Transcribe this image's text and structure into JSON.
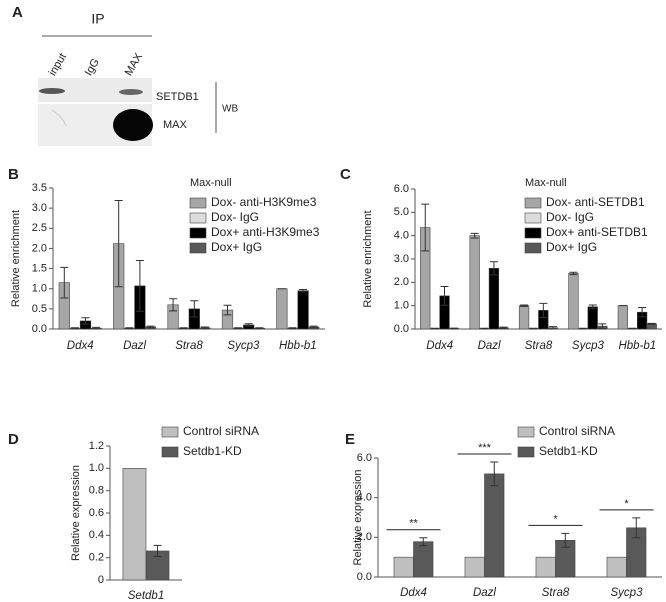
{
  "blot": {
    "label": "A",
    "header": "IP",
    "lanes": [
      "input",
      "IgG",
      "MAX"
    ],
    "rows": [
      "SETDB1",
      "MAX"
    ],
    "method": "WB"
  },
  "chart_data": [
    {
      "type": "bar",
      "panel": "B",
      "legend_title": "Max-null",
      "ylabel": "Relative enrichment",
      "categories": [
        "Ddx4",
        "Dazl",
        "Stra8",
        "Sycp3",
        "Hbb-b1"
      ],
      "ylim": [
        0,
        3.5
      ],
      "yticks": [
        {
          "value": 0,
          "label": "0.0"
        },
        0.5,
        {
          "value": 1,
          "label": "1.0"
        },
        1.5,
        {
          "value": 2,
          "label": "2.0"
        },
        2.5,
        {
          "value": 3,
          "label": "3.0"
        },
        3.5
      ],
      "series": [
        {
          "name": "Dox- anti-H3K9me3",
          "color": "#a6a6a6",
          "values": [
            1.15,
            2.12,
            0.6,
            0.47,
            1.0
          ],
          "errors": [
            0.38,
            1.07,
            0.15,
            0.12,
            0
          ]
        },
        {
          "name": "Dox- IgG",
          "color": "#dcdcdc",
          "values": [
            0.02,
            0.02,
            0.02,
            0.02,
            0.02
          ],
          "errors": [
            0.01,
            0.01,
            0.01,
            0.01,
            0.01
          ]
        },
        {
          "name": "Dox+ anti-H3K9me3",
          "color": "#000000",
          "values": [
            0.2,
            1.07,
            0.5,
            0.1,
            0.95
          ],
          "errors": [
            0.08,
            0.63,
            0.2,
            0.03,
            0.03
          ]
        },
        {
          "name": "Dox+ IgG",
          "color": "#595959",
          "values": [
            0.02,
            0.05,
            0.03,
            0.02,
            0.05
          ],
          "errors": [
            0.02,
            0.02,
            0.02,
            0.01,
            0.02
          ]
        }
      ]
    },
    {
      "type": "bar",
      "panel": "C",
      "legend_title": "Max-null",
      "ylabel": "Relative enrichment",
      "categories": [
        "Ddx4",
        "Dazl",
        "Stra8",
        "Sycp3",
        "Hbb-b1"
      ],
      "ylim": [
        0,
        6
      ],
      "yticks": [
        {
          "value": 0,
          "label": "0.0"
        },
        {
          "value": 1,
          "label": "1.0"
        },
        {
          "value": 2,
          "label": "2.0"
        },
        {
          "value": 3,
          "label": "3.0"
        },
        {
          "value": 4,
          "label": "4.0"
        },
        {
          "value": 5,
          "label": "5.0"
        },
        {
          "value": 6,
          "label": "6.0"
        }
      ],
      "series": [
        {
          "name": "Dox- anti-SETDB1",
          "color": "#a6a6a6",
          "values": [
            4.35,
            4.0,
            1.0,
            2.38,
            1.0
          ],
          "errors": [
            1.0,
            0.1,
            0.03,
            0.05,
            0
          ]
        },
        {
          "name": "Dox- IgG",
          "color": "#dcdcdc",
          "values": [
            0.02,
            0.02,
            0.02,
            0.02,
            0.02
          ],
          "errors": [
            0.01,
            0.01,
            0.01,
            0.01,
            0.01
          ]
        },
        {
          "name": "Dox+ anti-SETDB1",
          "color": "#000000",
          "values": [
            1.42,
            2.6,
            0.8,
            0.95,
            0.72
          ],
          "errors": [
            0.4,
            0.28,
            0.3,
            0.08,
            0.2
          ]
        },
        {
          "name": "Dox+ IgG",
          "color": "#595959",
          "values": [
            0.02,
            0.05,
            0.05,
            0.12,
            0.22
          ],
          "errors": [
            0.02,
            0.03,
            0.05,
            0.1,
            0.02
          ]
        }
      ]
    },
    {
      "type": "bar",
      "panel": "D",
      "ylabel": "Relative expression",
      "categories": [
        "Setdb1"
      ],
      "ylim": [
        0,
        1.2
      ],
      "yticks": [
        0,
        0.2,
        0.4,
        0.6,
        0.8,
        {
          "value": 1,
          "label": "1.0"
        },
        1.2
      ],
      "series": [
        {
          "name": "Control siRNA",
          "color": "#bfbfbf",
          "values": [
            1.0
          ]
        },
        {
          "name": "Setdb1-KD",
          "color": "#595959",
          "values": [
            0.26
          ],
          "errors": [
            0.05
          ]
        }
      ]
    },
    {
      "type": "bar",
      "panel": "E",
      "ylabel": "Relative expression",
      "categories": [
        "Ddx4",
        "Dazl",
        "Stra8",
        "Sycp3"
      ],
      "annotations": [
        "**",
        "***",
        "*",
        "*"
      ],
      "ylim": [
        0,
        6
      ],
      "yticks": [
        {
          "value": 0,
          "label": "0.0"
        },
        {
          "value": 2,
          "label": "2.0"
        },
        {
          "value": 4,
          "label": "4.0"
        },
        {
          "value": 6,
          "label": "6.0"
        }
      ],
      "series": [
        {
          "name": "Control siRNA",
          "color": "#bfbfbf",
          "values": [
            1,
            1,
            1,
            1
          ]
        },
        {
          "name": "Setdb1-KD",
          "color": "#595959",
          "values": [
            1.78,
            5.2,
            1.85,
            2.48
          ],
          "errors": [
            0.2,
            0.6,
            0.35,
            0.5
          ]
        }
      ]
    }
  ]
}
